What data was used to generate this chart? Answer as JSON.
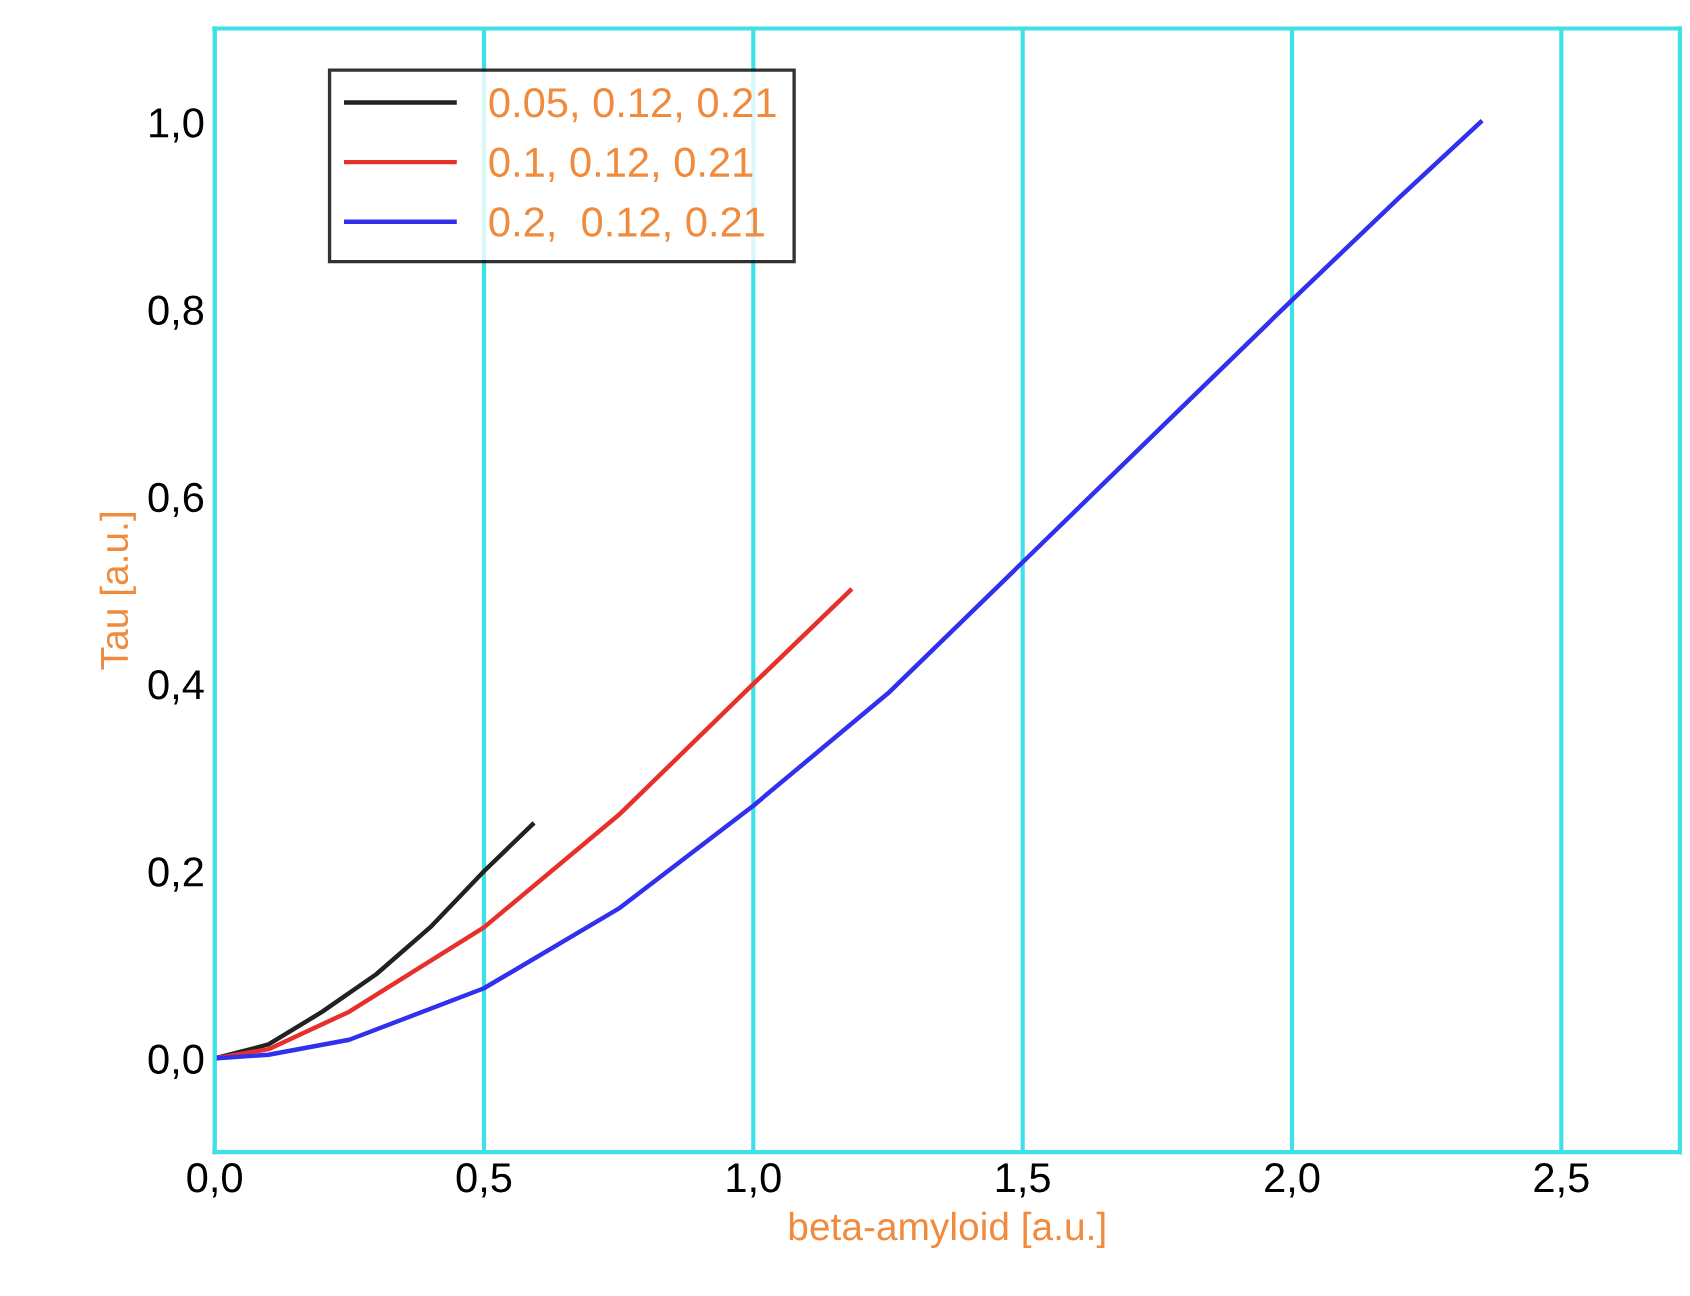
{
  "chart_data": {
    "type": "line",
    "xlabel": "beta-amyloid [a.u.]",
    "ylabel": "Tau [a.u.]",
    "xlim": [
      0,
      2.72
    ],
    "ylim": [
      -0.1,
      1.1
    ],
    "xticks": [
      {
        "value": 0,
        "label": "0,0"
      },
      {
        "value": 0.5,
        "label": "0,5"
      },
      {
        "value": 1.0,
        "label": "1,0"
      },
      {
        "value": 1.5,
        "label": "1,5"
      },
      {
        "value": 2.0,
        "label": "2,0"
      },
      {
        "value": 2.5,
        "label": "2,5"
      }
    ],
    "yticks": [
      {
        "value": 0,
        "label": "0,0"
      },
      {
        "value": 0.2,
        "label": "0,2"
      },
      {
        "value": 0.4,
        "label": "0,4"
      },
      {
        "value": 0.6,
        "label": "0,6"
      },
      {
        "value": 0.8,
        "label": "0,8"
      },
      {
        "value": 1.0,
        "label": "1,0"
      }
    ],
    "grid": "x",
    "legend": "top left",
    "marker": "none",
    "line_style": "solid",
    "series": [
      {
        "name": "0.05, 0.12, 0.21",
        "color": "#222222",
        "x": [
          0,
          0.1,
          0.2,
          0.3,
          0.4,
          0.5,
          0.59
        ],
        "values": [
          0,
          0.015,
          0.05,
          0.09,
          0.14,
          0.2,
          0.25
        ]
      },
      {
        "name": "0.1, 0.12, 0.21",
        "color": "#e8302a",
        "x": [
          0,
          0.1,
          0.25,
          0.5,
          0.75,
          1.0,
          1.18
        ],
        "values": [
          0,
          0.01,
          0.05,
          0.14,
          0.26,
          0.4,
          0.5
        ]
      },
      {
        "name": "0.2,  0.12, 0.21",
        "color": "#3030ee",
        "x": [
          0,
          0.1,
          0.25,
          0.5,
          0.75,
          1.0,
          1.25,
          1.5,
          1.75,
          2.0,
          2.2,
          2.35
        ],
        "values": [
          0,
          0.004,
          0.02,
          0.075,
          0.16,
          0.27,
          0.39,
          0.53,
          0.67,
          0.81,
          0.92,
          1.0
        ]
      }
    ]
  }
}
